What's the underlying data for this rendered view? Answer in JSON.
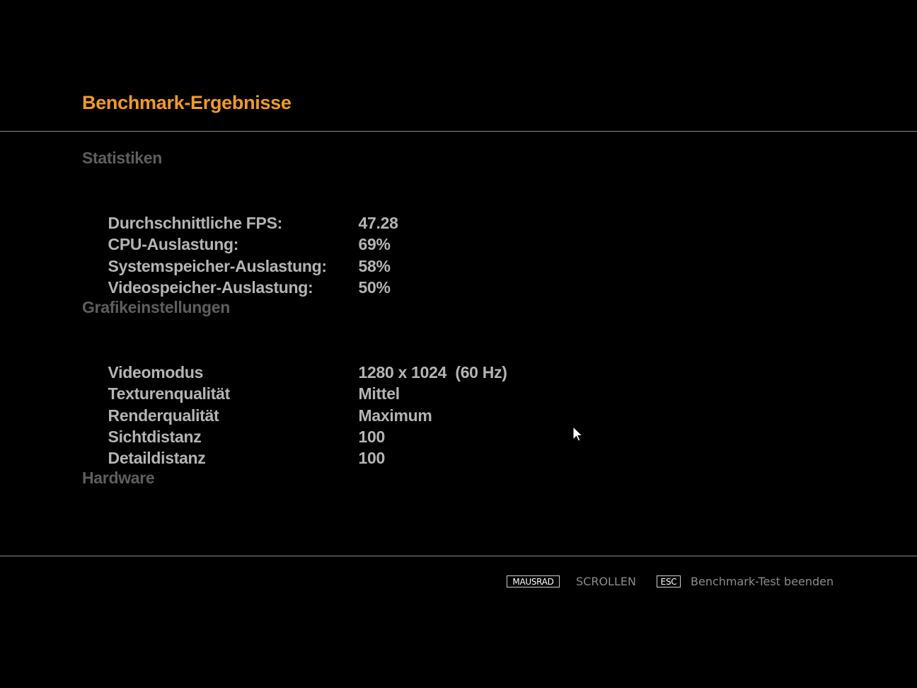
{
  "header": {
    "title": "Benchmark-Ergebnisse"
  },
  "statistics": {
    "heading": "Statistiken",
    "rows": [
      {
        "label": "Durchschnittliche FPS:",
        "value": "47.28"
      },
      {
        "label": "CPU-Auslastung:",
        "value": "69%"
      },
      {
        "label": "Systemspeicher-Auslastung:",
        "value": "58%"
      },
      {
        "label": "Videospeicher-Auslastung:",
        "value": "50%"
      }
    ]
  },
  "graphics": {
    "heading": "Grafikeinstellungen",
    "rows": [
      {
        "label": "Videomodus",
        "value": "1280 x 1024  (60 Hz)"
      },
      {
        "label": "Texturenqualität",
        "value": "Mittel"
      },
      {
        "label": "Renderqualität",
        "value": "Maximum"
      },
      {
        "label": "Sichtdistanz",
        "value": "100"
      },
      {
        "label": "Detaildistanz",
        "value": "100"
      }
    ]
  },
  "hardware": {
    "heading": "Hardware"
  },
  "footer": {
    "mousewheel_key": "MAUSRAD",
    "scroll_label": "SCROLLEN",
    "esc_key": "ESC",
    "exit_label": "Benchmark-Test beenden"
  },
  "colors": {
    "accent": "#f39c1a",
    "section_heading": "#5e5e5e",
    "row_text": "#b4b4b4",
    "background": "#000000"
  },
  "icons": {
    "cursor": "mouse-pointer-icon"
  }
}
